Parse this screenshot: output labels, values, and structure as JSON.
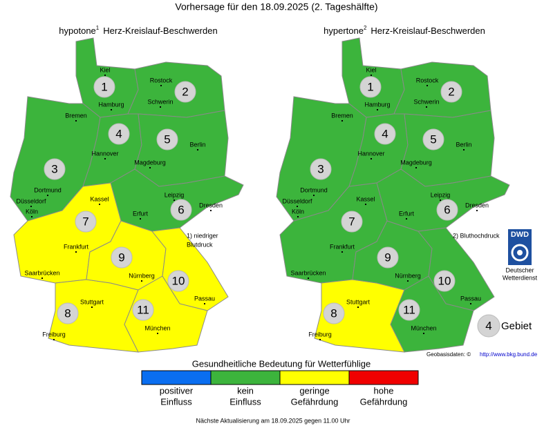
{
  "title": "Vorhersage für den 18.09.2025 (2. Tageshälfte)",
  "regions": [
    "1",
    "2",
    "3",
    "4",
    "5",
    "6",
    "7",
    "8",
    "9",
    "10",
    "11"
  ],
  "cities": [
    "Kiel",
    "Rostock",
    "Hamburg",
    "Schwerin",
    "Bremen",
    "Berlin",
    "Hannover",
    "Magdeburg",
    "Dortmund",
    "Düsseldorf",
    "Kassel",
    "Leipzig",
    "Dresden",
    "Köln",
    "Erfurt",
    "Frankfurt",
    "Saarbrücken",
    "Nürnberg",
    "Stuttgart",
    "Passau",
    "Freiburg",
    "München"
  ],
  "maps": [
    {
      "title": "hypotone",
      "superscript": "1",
      "subject": "Herz-Kreislauf-Beschwerden",
      "footnote": [
        "1) niedriger",
        "Blutdruck"
      ],
      "region_colors": [
        "#3cb43c",
        "#3cb43c",
        "#3cb43c",
        "#3cb43c",
        "#3cb43c",
        "#3cb43c",
        "#ffff00",
        "#ffff00",
        "#ffff00",
        "#ffff00",
        "#ffff00"
      ]
    },
    {
      "title": "hypertone",
      "superscript": "2",
      "subject": "Herz-Kreislauf-Beschwerden",
      "footnote": [
        "2) Bluthochdruck"
      ],
      "region_colors": [
        "#3cb43c",
        "#3cb43c",
        "#3cb43c",
        "#3cb43c",
        "#3cb43c",
        "#3cb43c",
        "#3cb43c",
        "#ffff00",
        "#3cb43c",
        "#3cb43c",
        "#3cb43c"
      ]
    }
  ],
  "logo": {
    "abbr": "DWD",
    "lines": [
      "Deutscher",
      "Wetterdienst"
    ]
  },
  "area_key": {
    "number": "4",
    "label": "Gebiet"
  },
  "source": {
    "label": "Geobasisdaten: ©",
    "url": "http://www.bkg.bund.de"
  },
  "legend": {
    "title": "Gesundheitliche Bedeutung für Wetterfühlige",
    "items": [
      {
        "lines": [
          "positiver",
          "Einfluss"
        ],
        "color": "#0a6ef0"
      },
      {
        "lines": [
          "kein",
          "Einfluss"
        ],
        "color": "#3cb43c"
      },
      {
        "lines": [
          "geringe",
          "Gefährdung"
        ],
        "color": "#ffff00"
      },
      {
        "lines": [
          "hohe",
          "Gefährdung"
        ],
        "color": "#f00000"
      }
    ]
  },
  "footer": "Nächste Aktualisierung am 18.09.2025 gegen 11.00 Uhr"
}
